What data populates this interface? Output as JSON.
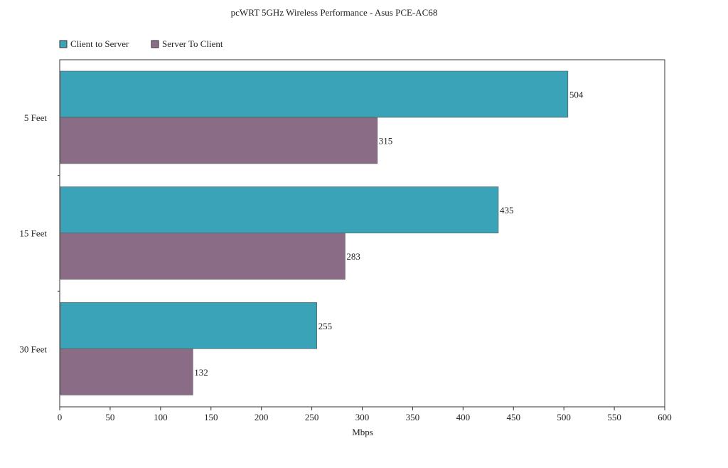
{
  "chart_data": {
    "type": "bar",
    "orientation": "horizontal",
    "title": "pcWRT 5GHz Wireless Performance - Asus PCE-AC68",
    "categories": [
      "5  Feet",
      "15  Feet",
      "30  Feet"
    ],
    "series": [
      {
        "name": "Client to Server",
        "color": "#3aa3b7",
        "values": [
          504,
          435,
          255
        ]
      },
      {
        "name": "Server To Client",
        "color": "#8a6c86",
        "values": [
          315,
          283,
          132
        ]
      }
    ],
    "xlabel": "Mbps",
    "ylabel": "",
    "xlim": [
      0,
      600
    ],
    "xticks": [
      0,
      50,
      100,
      150,
      200,
      250,
      300,
      350,
      400,
      450,
      500,
      550,
      600
    ],
    "grid": false,
    "legend_position": "top-left"
  }
}
